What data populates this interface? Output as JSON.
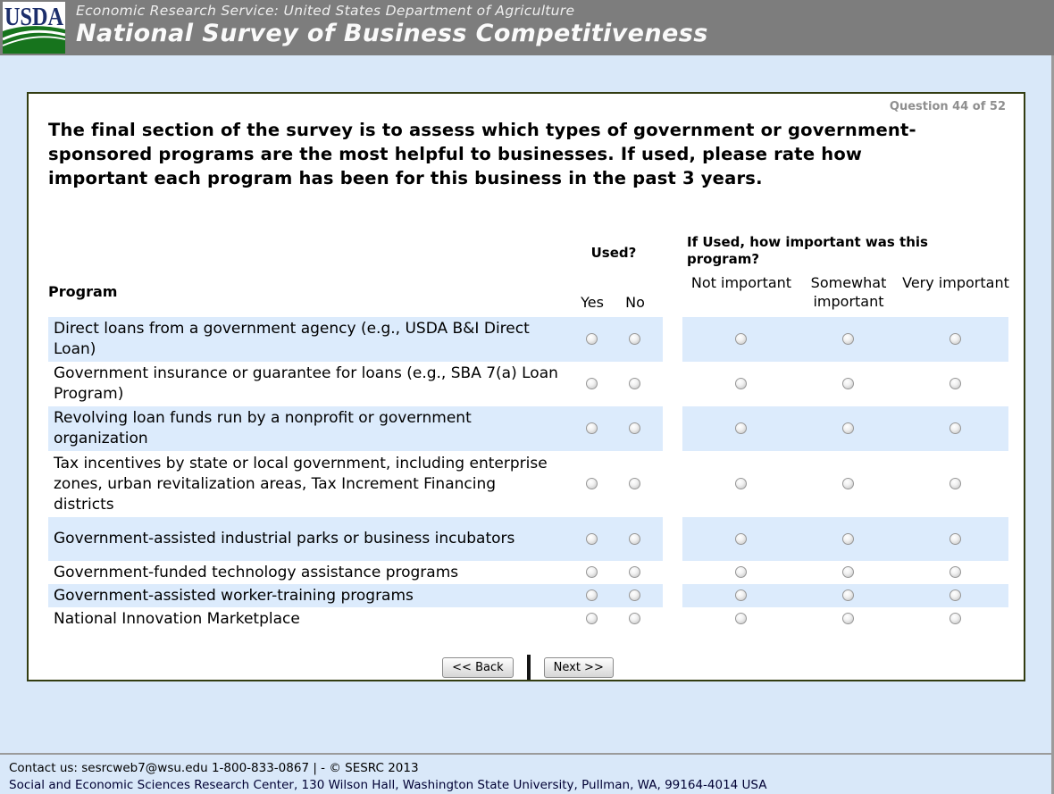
{
  "header": {
    "logo": "USDA",
    "tagline": "Economic Research Service: United States Department of Agriculture",
    "title": "National Survey of Business Competitiveness"
  },
  "question": {
    "counter": "Question 44 of 52",
    "text": "The final section of the survey is to assess which types of government or government-sponsored programs are the most helpful to businesses. If used, please rate how important each program has been for this business in the past 3 years."
  },
  "table": {
    "program_header": "Program",
    "used_header": "Used?",
    "importance_header": "If Used, how important was this program?",
    "used_options": [
      "Yes",
      "No"
    ],
    "importance_options": [
      "Not important",
      "Somewhat important",
      "Very important"
    ],
    "rows": [
      "Direct loans from a government agency (e.g., USDA B&I Direct Loan)",
      "Government insurance or guarantee for loans (e.g., SBA 7(a) Loan Program)",
      "Revolving loan funds run by a nonprofit or government organization",
      "Tax incentives by state or local government, including enterprise zones, urban revitalization areas, Tax Increment Financing districts",
      "Government-assisted industrial parks or business incubators",
      "Government-funded technology assistance programs",
      "Government-assisted worker-training programs",
      "National Innovation Marketplace"
    ]
  },
  "buttons": {
    "back": "<< Back",
    "next": "Next >>"
  },
  "footer": {
    "contact": "Contact us: sesrcweb7@wsu.edu 1-800-833-0867 | - © SESRC 2013",
    "address": "Social and Economic Sciences Research Center, 130 Wilson Hall, Washington State University, Pullman, WA, 99164-4014 USA"
  },
  "colors": {
    "header_bar": "#7d7d7d",
    "page_background": "#d9e8f9",
    "row_stripe": "#dcebfc",
    "panel_border": "#333d12",
    "counter_gray": "#8f8f8f",
    "logo_navy": "#1c2e6b",
    "logo_green": "#17741d"
  }
}
